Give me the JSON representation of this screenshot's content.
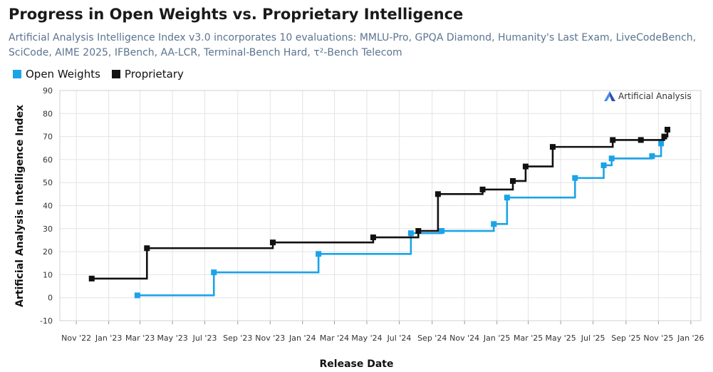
{
  "title": "Progress in Open Weights vs. Proprietary Intelligence",
  "subtitle": "Artificial Analysis Intelligence Index v3.0 incorporates 10 evaluations: MMLU-Pro, GPQA Diamond, Humanity's Last Exam, LiveCodeBench, SciCode, AIME 2025, IFBench, AA-LCR, Terminal-Bench Hard, τ²-Bench Telecom",
  "brand": "Artificial Analysis",
  "chart_data": {
    "type": "line",
    "step": true,
    "xlabel": "Release Date",
    "ylabel": "Artificial Analysis Intelligence Index",
    "ylim": [
      -10,
      90
    ],
    "yticks": [
      -10,
      0,
      10,
      20,
      30,
      40,
      50,
      60,
      70,
      80,
      90
    ],
    "xlim": [
      "2022-10-01",
      "2026-01-20"
    ],
    "xticks": [
      {
        "date": "2022-11-01",
        "label": "Nov '22"
      },
      {
        "date": "2023-01-01",
        "label": "Jan '23"
      },
      {
        "date": "2023-03-01",
        "label": "Mar '23"
      },
      {
        "date": "2023-05-01",
        "label": "May '23"
      },
      {
        "date": "2023-07-01",
        "label": "Jul '23"
      },
      {
        "date": "2023-09-01",
        "label": "Sep '23"
      },
      {
        "date": "2023-11-01",
        "label": "Nov '23"
      },
      {
        "date": "2024-01-01",
        "label": "Jan '24"
      },
      {
        "date": "2024-03-01",
        "label": "Mar '24"
      },
      {
        "date": "2024-05-01",
        "label": "May '24"
      },
      {
        "date": "2024-07-01",
        "label": "Jul '24"
      },
      {
        "date": "2024-09-01",
        "label": "Sep '24"
      },
      {
        "date": "2024-11-01",
        "label": "Nov '24"
      },
      {
        "date": "2025-01-01",
        "label": "Jan '25"
      },
      {
        "date": "2025-03-01",
        "label": "Mar '25"
      },
      {
        "date": "2025-05-01",
        "label": "May '25"
      },
      {
        "date": "2025-07-01",
        "label": "Jul '25"
      },
      {
        "date": "2025-09-01",
        "label": "Sep '25"
      },
      {
        "date": "2025-11-01",
        "label": "Nov '25"
      },
      {
        "date": "2026-01-01",
        "label": "Jan '26"
      }
    ],
    "grid": true,
    "legend_position": "top-left",
    "series": [
      {
        "name": "Open Weights",
        "color": "#1ba3e8",
        "points": [
          {
            "x": "2023-02-24",
            "y": 1
          },
          {
            "x": "2023-07-18",
            "y": 11
          },
          {
            "x": "2024-01-31",
            "y": 19
          },
          {
            "x": "2024-07-23",
            "y": 28
          },
          {
            "x": "2024-09-19",
            "y": 29
          },
          {
            "x": "2024-12-26",
            "y": 32
          },
          {
            "x": "2025-01-20",
            "y": 43.5
          },
          {
            "x": "2025-05-28",
            "y": 52
          },
          {
            "x": "2025-07-21",
            "y": 57.5
          },
          {
            "x": "2025-08-05",
            "y": 60.5
          },
          {
            "x": "2025-10-20",
            "y": 61.5
          },
          {
            "x": "2025-11-06",
            "y": 67
          }
        ]
      },
      {
        "name": "Proprietary",
        "color": "#111111",
        "points": [
          {
            "x": "2022-11-30",
            "y": 8.3
          },
          {
            "x": "2023-03-14",
            "y": 21.5
          },
          {
            "x": "2023-11-06",
            "y": 24
          },
          {
            "x": "2024-05-13",
            "y": 26.2
          },
          {
            "x": "2024-08-06",
            "y": 29
          },
          {
            "x": "2024-09-12",
            "y": 45
          },
          {
            "x": "2024-12-05",
            "y": 47
          },
          {
            "x": "2025-01-31",
            "y": 50.7
          },
          {
            "x": "2025-02-24",
            "y": 57
          },
          {
            "x": "2025-04-16",
            "y": 65.5
          },
          {
            "x": "2025-08-07",
            "y": 68.5
          },
          {
            "x": "2025-09-29",
            "y": 68.5
          },
          {
            "x": "2025-11-12",
            "y": 70
          },
          {
            "x": "2025-11-18",
            "y": 73
          }
        ]
      }
    ]
  }
}
